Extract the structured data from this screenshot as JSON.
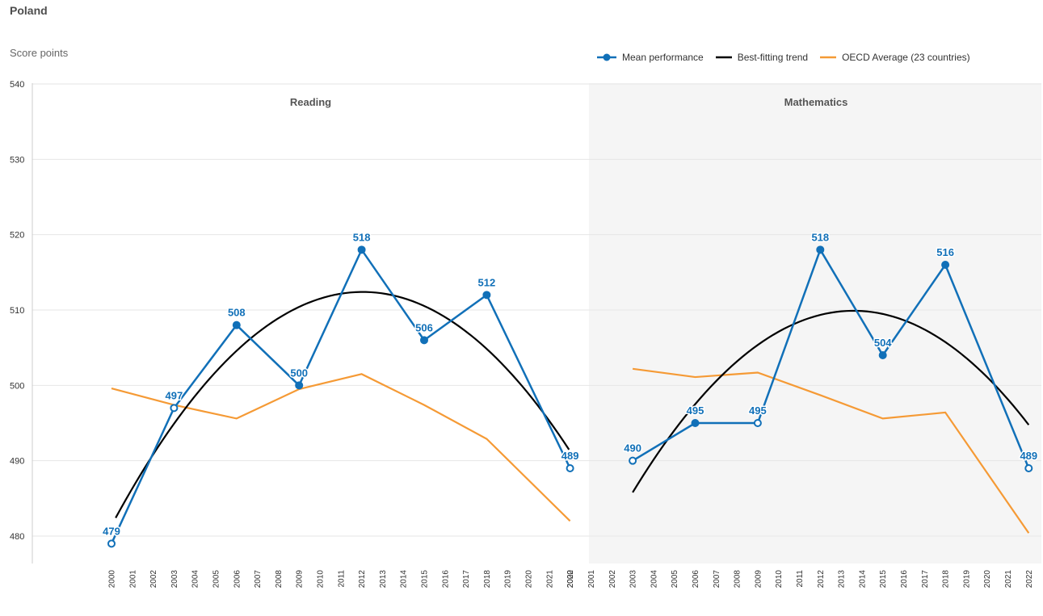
{
  "header": {
    "country": "Poland",
    "y_axis_label": "Score points"
  },
  "legend": {
    "items": [
      {
        "label": "Mean performance",
        "color": "#1170b8",
        "icon": "line-with-dot"
      },
      {
        "label": "Best-fitting trend",
        "color": "#000000",
        "icon": "line"
      },
      {
        "label": "OECD Average (23 countries)",
        "color": "#f59a35",
        "icon": "line"
      }
    ]
  },
  "chart_data": {
    "type": "line",
    "ylabel": "Score points",
    "ylim": [
      480,
      540
    ],
    "yticks": [
      480,
      490,
      500,
      510,
      520,
      530,
      540
    ],
    "grid": true,
    "legend_position": "top-right",
    "x_years": [
      2000,
      2001,
      2002,
      2003,
      2004,
      2005,
      2006,
      2007,
      2008,
      2009,
      2010,
      2011,
      2012,
      2013,
      2014,
      2015,
      2016,
      2017,
      2018,
      2019,
      2020,
      2021,
      2022
    ],
    "panels": [
      {
        "title": "Reading",
        "x_years_start": 2000,
        "mean_performance": [
          {
            "year": 2000,
            "value": 479,
            "label": "479",
            "hollow": true
          },
          {
            "year": 2003,
            "value": 497,
            "label": "497",
            "hollow": true
          },
          {
            "year": 2006,
            "value": 508,
            "label": "508",
            "hollow": false
          },
          {
            "year": 2009,
            "value": 500,
            "label": "500",
            "hollow": false
          },
          {
            "year": 2012,
            "value": 518,
            "label": "518",
            "hollow": false
          },
          {
            "year": 2015,
            "value": 506,
            "label": "506",
            "hollow": false
          },
          {
            "year": 2018,
            "value": 512,
            "label": "512",
            "hollow": false
          },
          {
            "year": 2022,
            "value": 489,
            "label": "489",
            "hollow": true
          }
        ],
        "oecd_average": [
          {
            "year": 2000,
            "value": 499.6
          },
          {
            "year": 2003,
            "value": 497.4
          },
          {
            "year": 2006,
            "value": 495.6
          },
          {
            "year": 2009,
            "value": 499.5
          },
          {
            "year": 2012,
            "value": 501.5
          },
          {
            "year": 2015,
            "value": 497.4
          },
          {
            "year": 2018,
            "value": 492.9
          },
          {
            "year": 2022,
            "value": 482.0
          }
        ],
        "trend": {
          "vertex_year": 2012.05,
          "vertex_value": 512.4,
          "a": 0.2135,
          "from": 2000.2,
          "to": 2022
        }
      },
      {
        "title": "Mathematics",
        "x_years_start": 2001,
        "mean_performance": [
          {
            "year": 2003,
            "value": 490,
            "label": "490",
            "hollow": true
          },
          {
            "year": 2006,
            "value": 495,
            "label": "495",
            "hollow": false
          },
          {
            "year": 2009,
            "value": 495,
            "label": "495",
            "hollow": true
          },
          {
            "year": 2012,
            "value": 518,
            "label": "518",
            "hollow": false
          },
          {
            "year": 2015,
            "value": 504,
            "label": "504",
            "hollow": false
          },
          {
            "year": 2018,
            "value": 516,
            "label": "516",
            "hollow": false
          },
          {
            "year": 2022,
            "value": 489,
            "label": "489",
            "hollow": true
          }
        ],
        "oecd_average": [
          {
            "year": 2003,
            "value": 502.2
          },
          {
            "year": 2006,
            "value": 501.1
          },
          {
            "year": 2009,
            "value": 501.7
          },
          {
            "year": 2012,
            "value": 498.7
          },
          {
            "year": 2015,
            "value": 495.6
          },
          {
            "year": 2018,
            "value": 496.4
          },
          {
            "year": 2022,
            "value": 480.4
          }
        ],
        "trend": {
          "vertex_year": 2013.6,
          "vertex_value": 509.9,
          "a": 0.2146,
          "from": 2003,
          "to": 2022
        }
      }
    ]
  }
}
